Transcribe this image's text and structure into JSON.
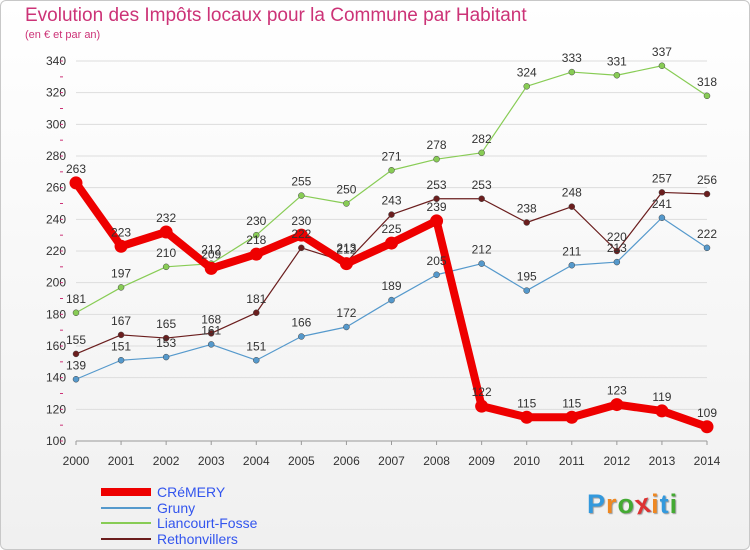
{
  "header": {
    "title": "Evolution des Impôts locaux pour la Commune par Habitant",
    "subtitle": "(en € et par an)"
  },
  "colors": {
    "title": "#cc3377",
    "legend_text": "#3355ee",
    "grid": "#dddddd",
    "axis": "#999999"
  },
  "logo": {
    "text": "Proxiti",
    "letters": [
      "P",
      "r",
      "o",
      "x",
      "i",
      "t",
      "i"
    ],
    "letter_colors": [
      "#3399dd",
      "#ee8822",
      "#44aa33",
      "#dd3333",
      "#ee8822",
      "#3399dd",
      "#44aa33"
    ]
  },
  "chart_data": {
    "type": "line",
    "title": "Evolution des Impôts locaux pour la Commune par Habitant",
    "ylabel": "(en € et par an)",
    "xlabel": "",
    "ylim": [
      100,
      340
    ],
    "yticks": [
      100,
      120,
      140,
      160,
      180,
      200,
      220,
      240,
      260,
      280,
      300,
      320,
      340
    ],
    "categories": [
      "2000",
      "2001",
      "2002",
      "2003",
      "2004",
      "2005",
      "2006",
      "2007",
      "2008",
      "2009",
      "2010",
      "2011",
      "2012",
      "2013",
      "2014"
    ],
    "grid": true,
    "legend": "bottom-left",
    "series": [
      {
        "name": "Rethonvillers",
        "color": "#6b1e1e",
        "values": [
          155,
          167,
          165,
          168,
          181,
          222,
          213,
          243,
          253,
          253,
          238,
          248,
          220,
          257,
          256
        ],
        "labels": [
          "155",
          "167",
          "165",
          "168",
          "181",
          "222",
          "213",
          "243",
          "253",
          "253",
          "238",
          "248",
          "220",
          "257",
          "256"
        ]
      },
      {
        "name": "Liancourt-Fosse",
        "color": "#88cc55",
        "values": [
          181,
          197,
          210,
          212,
          230,
          255,
          250,
          271,
          278,
          282,
          324,
          333,
          331,
          337,
          318
        ],
        "labels": [
          "181",
          "197",
          "210",
          "212",
          "230",
          "255",
          "250",
          "271",
          "278",
          "282",
          "324",
          "333",
          "331",
          "337",
          "318"
        ]
      },
      {
        "name": "Gruny",
        "color": "#5599cc",
        "values": [
          139,
          151,
          153,
          161,
          151,
          166,
          172,
          189,
          205,
          212,
          195,
          211,
          213,
          241,
          222
        ],
        "labels": [
          "139",
          "151",
          "153",
          "161",
          "151",
          "166",
          "172",
          "189",
          "205",
          "212",
          "195",
          "211",
          "213",
          "241",
          "222"
        ]
      },
      {
        "name": "CRéMERY",
        "color": "#ee0000",
        "values": [
          263,
          223,
          232,
          209,
          218,
          230,
          212,
          225,
          239,
          122,
          115,
          115,
          123,
          119,
          109
        ],
        "labels": [
          "263",
          "223",
          "232",
          "209",
          "218",
          "230",
          "212",
          "225",
          "239",
          "122",
          "115",
          "115",
          "123",
          "119",
          "109"
        ]
      }
    ],
    "legend_order": [
      "CRéMERY",
      "Gruny",
      "Liancourt-Fosse",
      "Rethonvillers"
    ]
  }
}
